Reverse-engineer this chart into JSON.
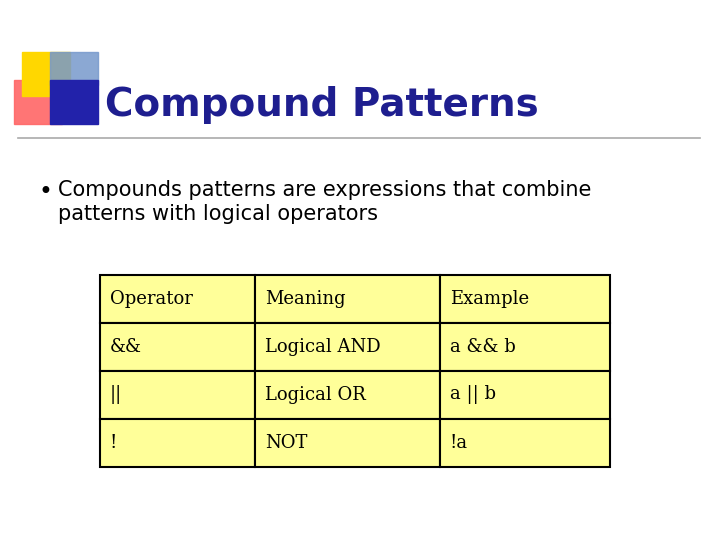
{
  "title": "Compound Patterns",
  "title_color": "#1E1E8F",
  "title_fontsize": 28,
  "background_color": "#FFFFFF",
  "bullet_text_line1": "Compounds patterns are expressions that combine",
  "bullet_text_line2": "patterns with logical operators",
  "bullet_fontsize": 15,
  "table_headers": [
    "Operator",
    "Meaning",
    "Example"
  ],
  "table_rows": [
    [
      "&&",
      "Logical AND",
      "a && b"
    ],
    [
      "||",
      "Logical OR",
      "a || b"
    ],
    [
      "!",
      "NOT",
      "!a"
    ]
  ],
  "table_cell_color": "#FFFF99",
  "table_edge_color": "#000000",
  "table_fontsize": 13,
  "sq_yellow": "#FFD700",
  "sq_red": "#FF6666",
  "sq_blue_dark": "#2222AA",
  "sq_blue_light": "#7799CC",
  "sep_line_color": "#AAAAAA"
}
